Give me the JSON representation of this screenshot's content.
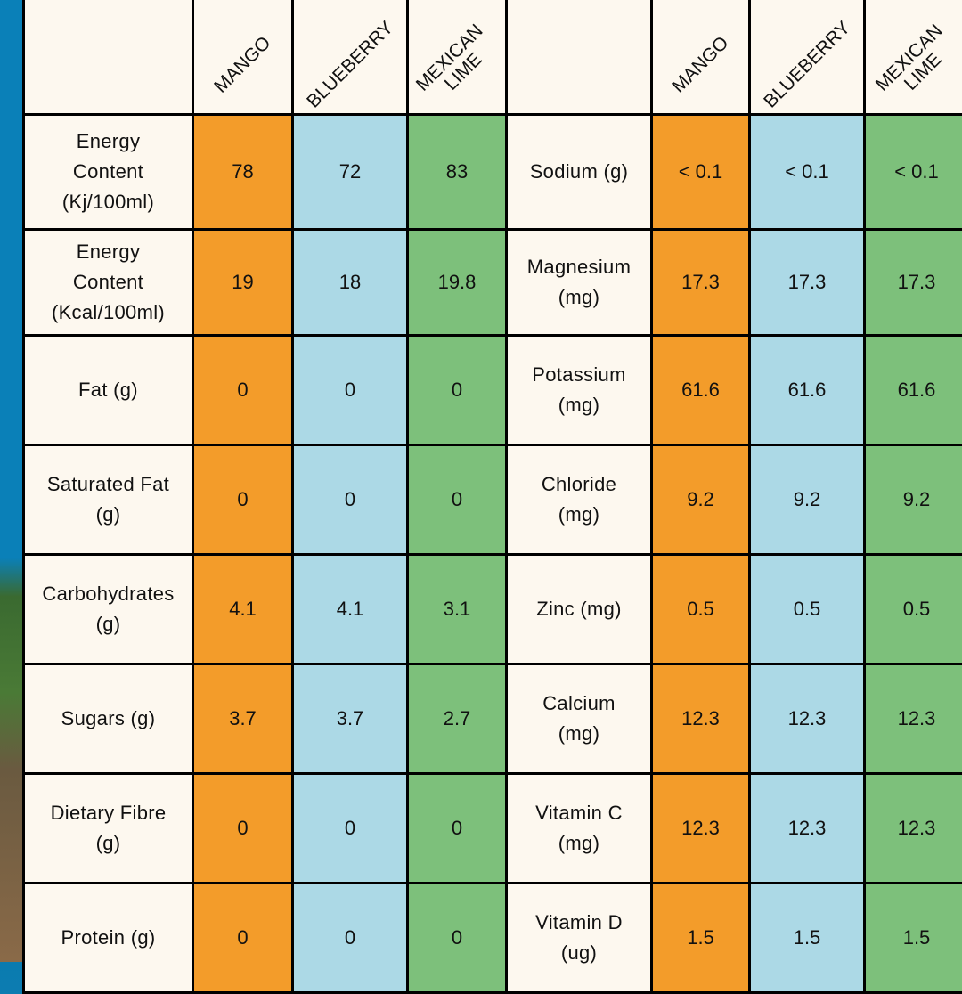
{
  "header": {
    "left": {
      "blank": "",
      "columns": [
        "MANGO",
        "BLUEBERRY",
        "MEXICAN\nLIME"
      ]
    },
    "right": {
      "blank": "",
      "columns": [
        "MANGO",
        "BLUEBERRY",
        "MEXICAN\nLIME"
      ]
    }
  },
  "rows": [
    {
      "left_label": "Energy\nContent\n(Kj/100ml)",
      "left_values": [
        "78",
        "72",
        "83"
      ],
      "right_label": "Sodium (g)",
      "right_values": [
        "< 0.1",
        "< 0.1",
        "< 0.1"
      ]
    },
    {
      "left_label": "Energy\nContent\n(Kcal/100ml)",
      "left_values": [
        "19",
        "18",
        "19.8"
      ],
      "right_label": "Magnesium\n(mg)",
      "right_values": [
        "17.3",
        "17.3",
        "17.3"
      ]
    },
    {
      "left_label": "Fat (g)",
      "left_values": [
        "0",
        "0",
        "0"
      ],
      "right_label": "Potassium\n(mg)",
      "right_values": [
        "61.6",
        "61.6",
        "61.6"
      ]
    },
    {
      "left_label": "Saturated Fat\n(g)",
      "left_values": [
        "0",
        "0",
        "0"
      ],
      "right_label": "Chloride\n(mg)",
      "right_values": [
        "9.2",
        "9.2",
        "9.2"
      ]
    },
    {
      "left_label": "Carbohydrates\n(g)",
      "left_values": [
        "4.1",
        "4.1",
        "3.1"
      ],
      "right_label": "Zinc (mg)",
      "right_values": [
        "0.5",
        "0.5",
        "0.5"
      ]
    },
    {
      "left_label": "Sugars (g)",
      "left_values": [
        "3.7",
        "3.7",
        "2.7"
      ],
      "right_label": "Calcium\n(mg)",
      "right_values": [
        "12.3",
        "12.3",
        "12.3"
      ]
    },
    {
      "left_label": "Dietary Fibre\n(g)",
      "left_values": [
        "0",
        "0",
        "0"
      ],
      "right_label": "Vitamin C\n(mg)",
      "right_values": [
        "12.3",
        "12.3",
        "12.3"
      ]
    },
    {
      "left_label": "Protein (g)",
      "left_values": [
        "0",
        "0",
        "0"
      ],
      "right_label": "Vitamin D\n(ug)",
      "right_values": [
        "1.5",
        "1.5",
        "1.5"
      ]
    }
  ],
  "colors": {
    "mango": "#f39c2a",
    "blueberry": "#acd9e6",
    "mexican_lime": "#7dc07b",
    "label_bg": "#fdf8ef",
    "border": "#000000"
  }
}
